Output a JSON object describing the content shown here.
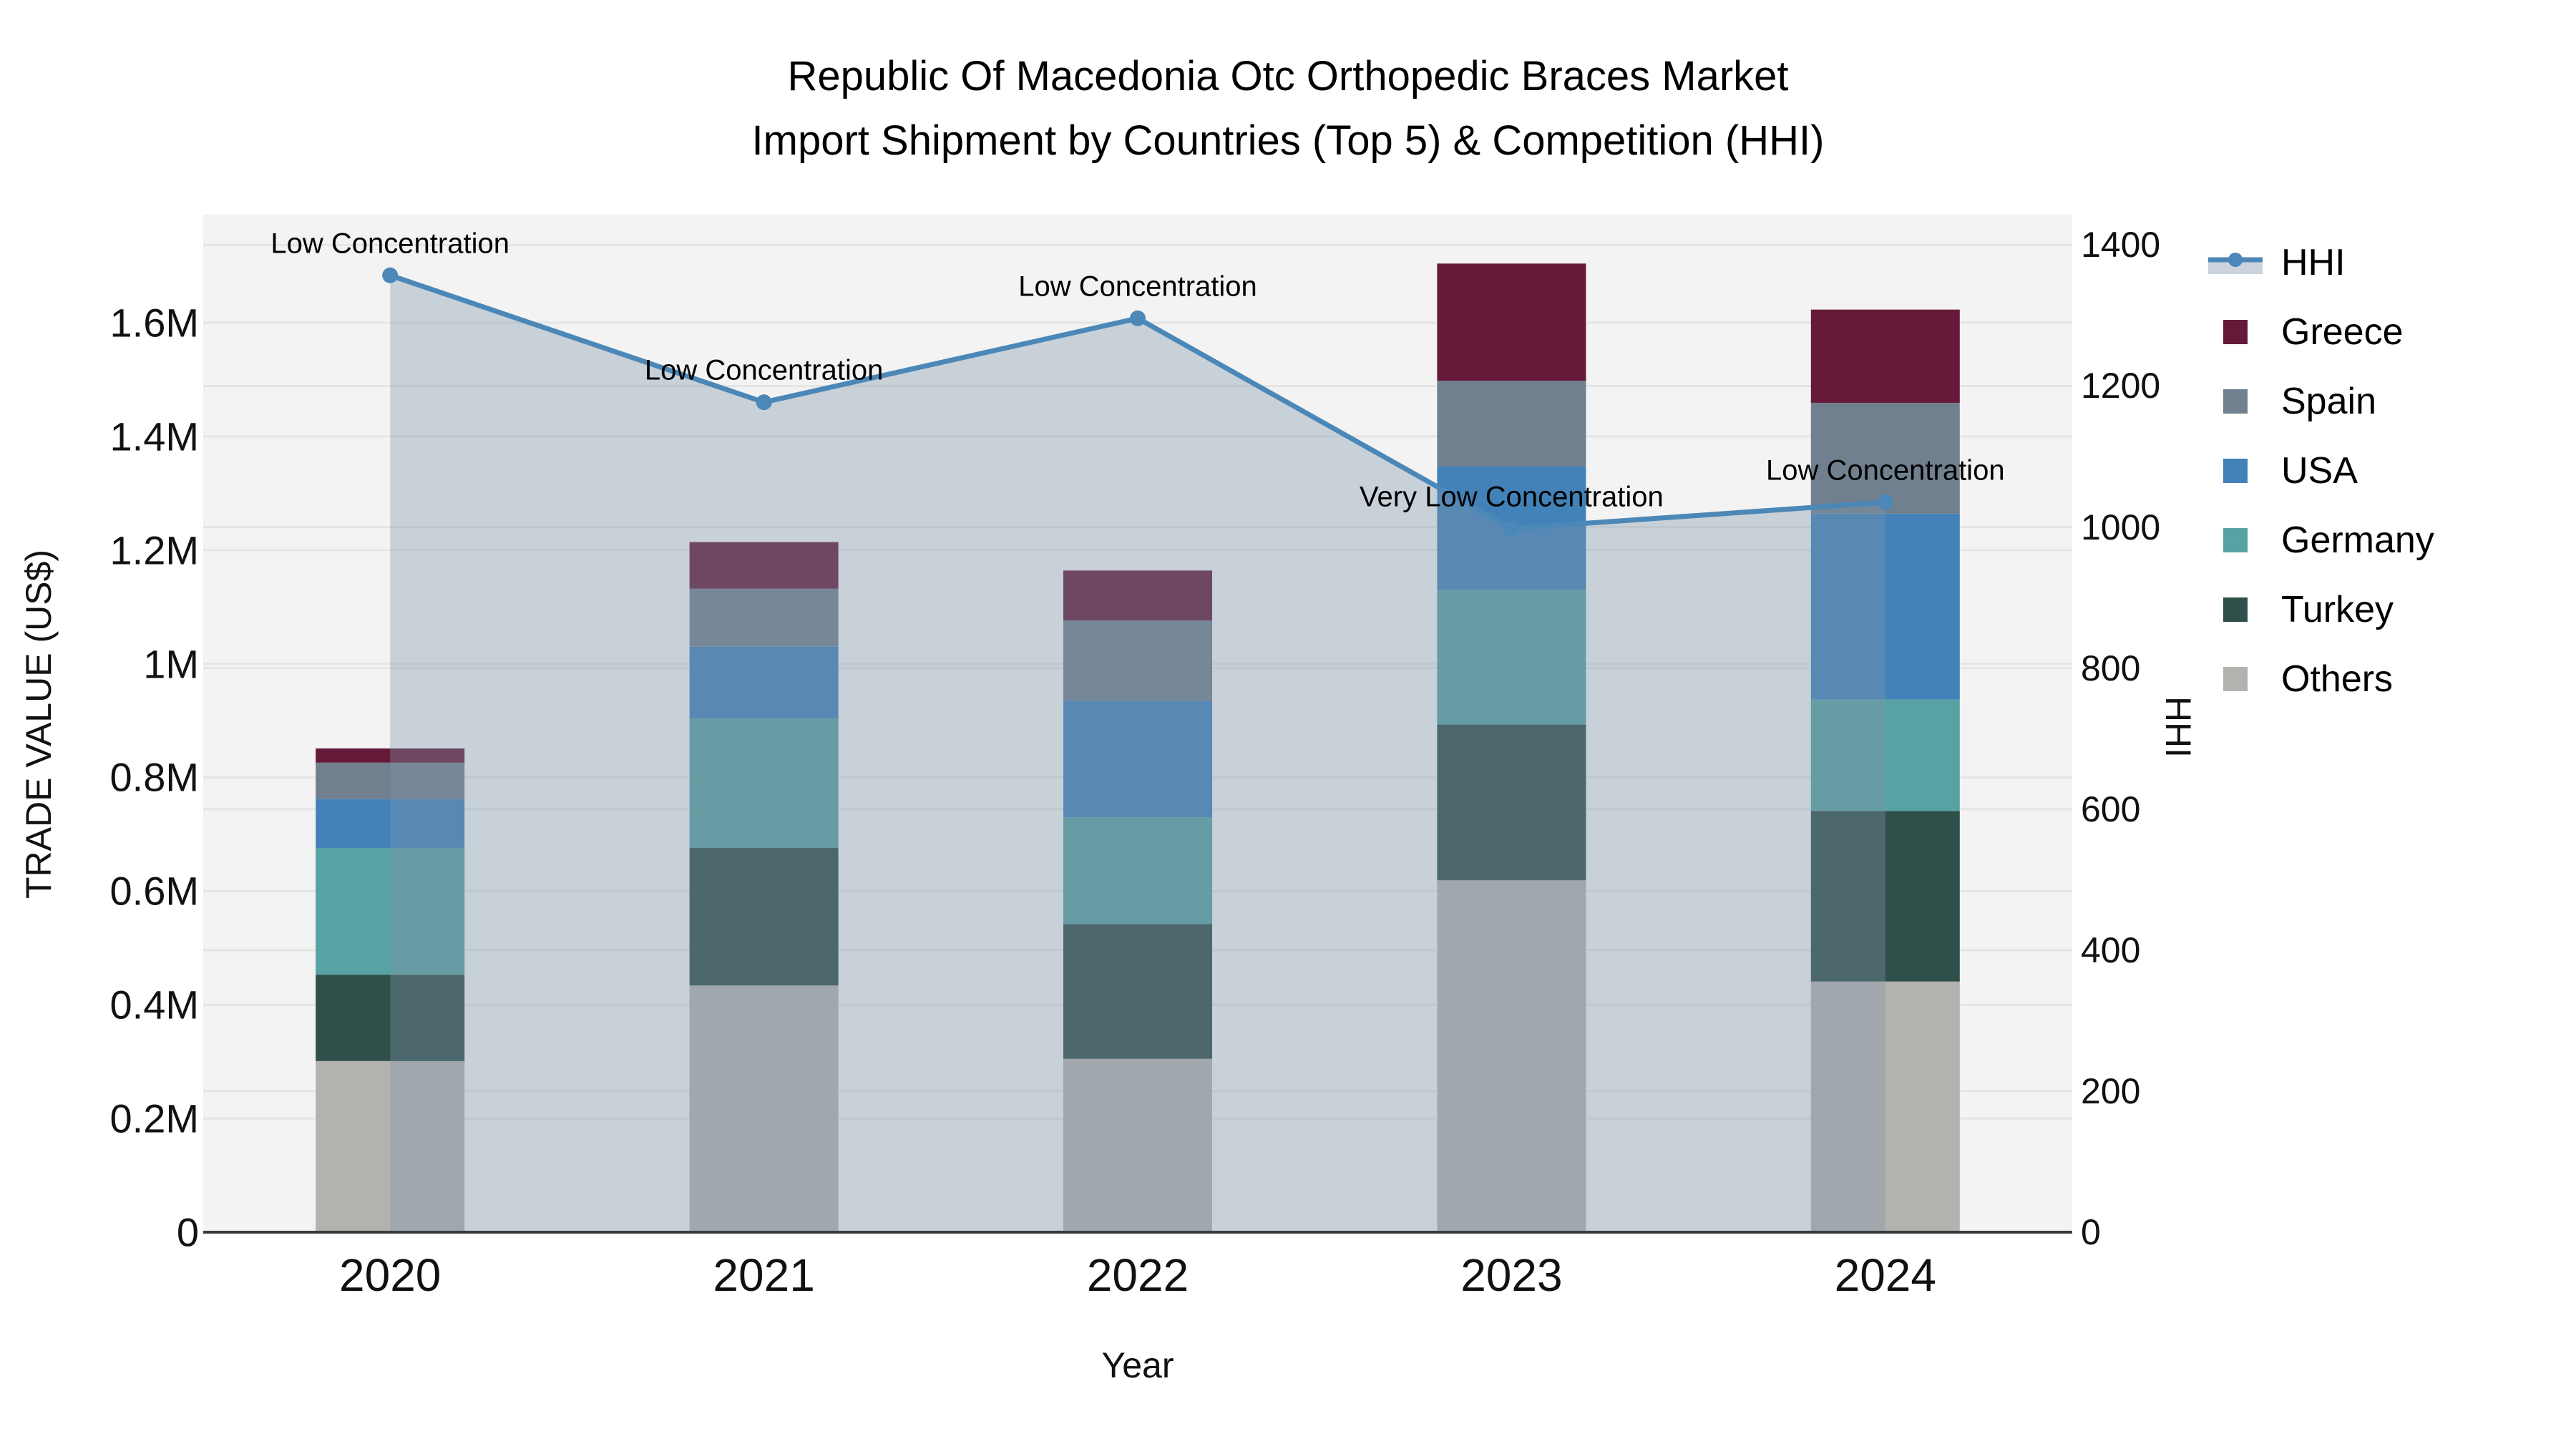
{
  "title": {
    "line1": "Republic Of Macedonia Otc Orthopedic Braces Market",
    "line2": "Import Shipment by Countries (Top 5) & Competition (HHI)"
  },
  "chart_data": {
    "type": "bar",
    "subtype": "stacked bars (left axis) + line with markers (right axis)",
    "title": "Republic Of Macedonia Otc Orthopedic Braces Market Import Shipment by Countries (Top 5) & Competition (HHI)",
    "xlabel": "Year",
    "ylabel": "TRADE VALUE (US$)",
    "ylabel_right": "HHI",
    "categories": [
      "2020",
      "2021",
      "2022",
      "2023",
      "2024"
    ],
    "bar_series": [
      {
        "name": "Greece",
        "color": "#651a39",
        "values": [
          25000,
          82000,
          88000,
          206000,
          164000
        ]
      },
      {
        "name": "Spain",
        "color": "#71808e",
        "values": [
          64000,
          102000,
          141000,
          151000,
          195000
        ]
      },
      {
        "name": "USA",
        "color": "#4282b9",
        "values": [
          86000,
          126000,
          205000,
          217000,
          327000
        ]
      },
      {
        "name": "Germany",
        "color": "#57a2a2",
        "values": [
          223000,
          228000,
          188000,
          237000,
          196000
        ]
      },
      {
        "name": "Turkey",
        "color": "#2e4f4a",
        "values": [
          152000,
          242000,
          237000,
          274000,
          300000
        ]
      },
      {
        "name": "Others",
        "color": "#b3b2ae",
        "values": [
          301000,
          434000,
          305000,
          619000,
          441000
        ]
      }
    ],
    "bar_totals": [
      851000,
      1214000,
      1164000,
      1704000,
      1623000
    ],
    "line_series": {
      "name": "HHI",
      "axis": "right",
      "color": "#4b87b7",
      "area_fill": "rgba(128,148,170,0.37)",
      "values": [
        1357,
        1177,
        1296,
        998,
        1035
      ]
    },
    "annotations": [
      {
        "year": "2020",
        "text": "Low Concentration"
      },
      {
        "year": "2021",
        "text": "Low Concentration"
      },
      {
        "year": "2022",
        "text": "Low Concentration"
      },
      {
        "year": "2023",
        "text": "Very Low Concentration"
      },
      {
        "year": "2024",
        "text": "Low Concentration"
      }
    ],
    "y_left_ticks": [
      {
        "label": "0",
        "value": 0
      },
      {
        "label": "0.2M",
        "value": 200000
      },
      {
        "label": "0.4M",
        "value": 400000
      },
      {
        "label": "0.6M",
        "value": 600000
      },
      {
        "label": "0.8M",
        "value": 800000
      },
      {
        "label": "1M",
        "value": 1000000
      },
      {
        "label": "1.2M",
        "value": 1200000
      },
      {
        "label": "1.4M",
        "value": 1400000
      },
      {
        "label": "1.6M",
        "value": 1600000
      }
    ],
    "y_right_ticks": [
      {
        "label": "0",
        "value": 0
      },
      {
        "label": "200",
        "value": 200
      },
      {
        "label": "400",
        "value": 400
      },
      {
        "label": "600",
        "value": 600
      },
      {
        "label": "800",
        "value": 800
      },
      {
        "label": "1000",
        "value": 1000
      },
      {
        "label": "1200",
        "value": 1200
      },
      {
        "label": "1400",
        "value": 1400
      }
    ],
    "y_left_range": [
      0,
      1790000
    ],
    "y_right_range": [
      0,
      1443
    ],
    "grid": true,
    "legend_position": "right"
  },
  "legend": {
    "items": [
      {
        "label": "HHI",
        "type": "line"
      },
      {
        "label": "Greece",
        "type": "swatch",
        "color": "#651a39"
      },
      {
        "label": "Spain",
        "type": "swatch",
        "color": "#71808e"
      },
      {
        "label": "USA",
        "type": "swatch",
        "color": "#4282b9"
      },
      {
        "label": "Germany",
        "type": "swatch",
        "color": "#57a2a2"
      },
      {
        "label": "Turkey",
        "type": "swatch",
        "color": "#2e4f4a"
      },
      {
        "label": "Others",
        "type": "swatch",
        "color": "#b3b2ae"
      }
    ]
  },
  "colors": {
    "plot_background": "#f2f3f2",
    "gridline": "#e4e6e5",
    "axis_line": "#3a3a3a",
    "hhi_line": "#4b87b7",
    "hhi_area_fill": "rgba(128,148,170,0.37)",
    "legend_band": "#ccd3dc",
    "text": "#000000"
  }
}
